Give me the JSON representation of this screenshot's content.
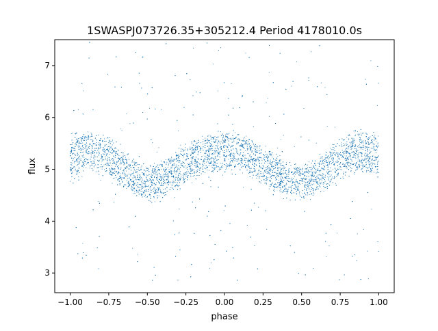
{
  "chart_data": {
    "type": "scatter",
    "title": "1SWASPJ073726.35+305212.4 Period 4178010.0s",
    "xlabel": "phase",
    "ylabel": "flux",
    "xlim": [
      -1.1,
      1.1
    ],
    "ylim": [
      2.62,
      7.5
    ],
    "xticks": [
      -1.0,
      -0.75,
      -0.5,
      -0.25,
      0.0,
      0.25,
      0.5,
      0.75,
      1.0
    ],
    "xtick_labels": [
      "−1.00",
      "−0.75",
      "−0.50",
      "−0.25",
      "0.00",
      "0.25",
      "0.50",
      "0.75",
      "1.00"
    ],
    "yticks": [
      3,
      4,
      5,
      6,
      7
    ],
    "ytick_labels": [
      "3",
      "4",
      "5",
      "6",
      "7"
    ],
    "grid": false,
    "marker_color": "#1f77b4",
    "series": [
      {
        "description_points": "Dense band of points; mean flux versus phase (symmetric about 0, period 1 in phase)",
        "x": [
          -1.0,
          -0.9,
          -0.8,
          -0.7,
          -0.6,
          -0.5,
          -0.4,
          -0.3,
          -0.2,
          -0.1,
          0.0,
          0.1,
          0.2,
          0.3,
          0.4,
          0.5,
          0.6,
          0.7,
          0.8,
          0.9,
          1.0
        ],
        "y": [
          5.2,
          5.35,
          5.3,
          5.1,
          4.85,
          4.75,
          4.8,
          5.0,
          5.2,
          5.3,
          5.35,
          5.3,
          5.2,
          5.0,
          4.8,
          4.75,
          4.85,
          5.1,
          5.3,
          5.35,
          5.2
        ],
        "spread": [
          0.5,
          0.45,
          0.45,
          0.45,
          0.4,
          0.4,
          0.4,
          0.45,
          0.45,
          0.45,
          0.45,
          0.45,
          0.45,
          0.45,
          0.4,
          0.4,
          0.4,
          0.45,
          0.45,
          0.45,
          0.5
        ],
        "outlier_range": [
          2.85,
          7.45
        ]
      }
    ]
  }
}
